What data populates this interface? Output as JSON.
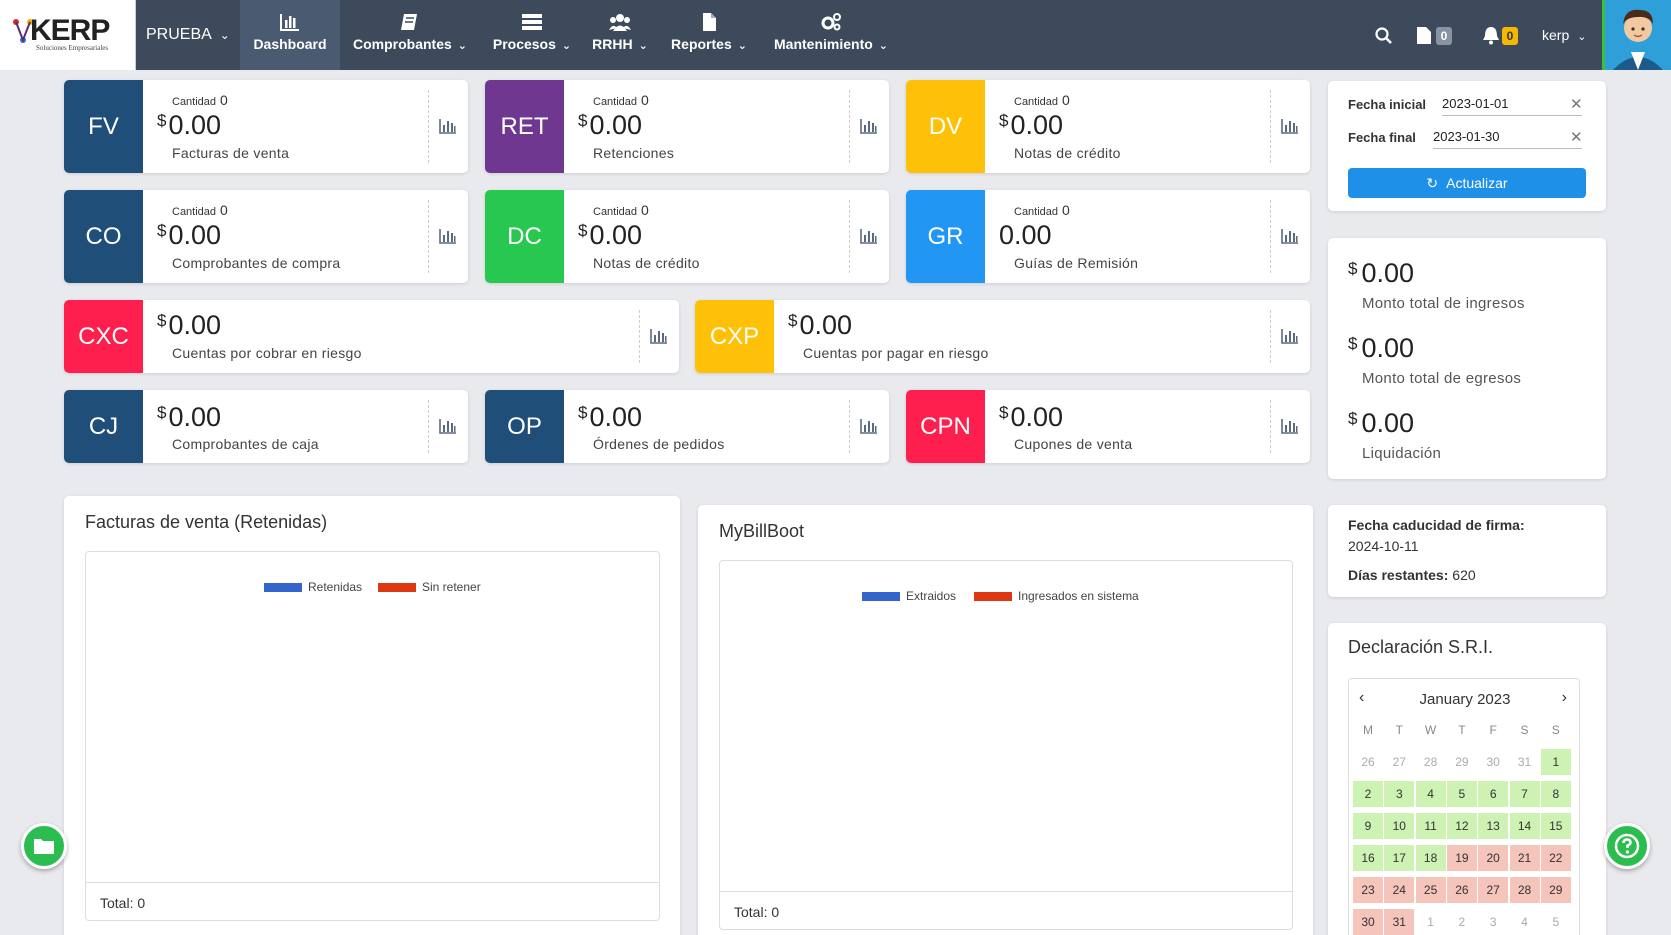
{
  "brand": {
    "logo_text": "KERP",
    "logo_sub": "Soluciones Empresariales",
    "primary": "#3c4a5c"
  },
  "navbar": {
    "company": "PRUEBA",
    "items": [
      {
        "label": "Dashboard",
        "icon": "bar-chart-icon",
        "active": true
      },
      {
        "label": "Comprobantes",
        "icon": "book-icon"
      },
      {
        "label": "Procesos",
        "icon": "server-icon"
      },
      {
        "label": "RRHH",
        "icon": "users-icon"
      },
      {
        "label": "Reportes",
        "icon": "file-icon"
      },
      {
        "label": "Mantenimiento",
        "icon": "cogs-icon"
      }
    ],
    "docs_count": "0",
    "notif_count": "0",
    "user": "kerp"
  },
  "cards": {
    "fv": {
      "tag": "FV",
      "color": "#1f4e79",
      "cantidad_label": "Cantidad",
      "cantidad": "0",
      "currency": "$",
      "amount": "0.00",
      "label": "Facturas de venta"
    },
    "ret": {
      "tag": "RET",
      "color": "#6f3790",
      "cantidad_label": "Cantidad",
      "cantidad": "0",
      "currency": "$",
      "amount": "0.00",
      "label": "Retenciones"
    },
    "dv": {
      "tag": "DV",
      "color": "#ffc107",
      "cantidad_label": "Cantidad",
      "cantidad": "0",
      "currency": "$",
      "amount": "0.00",
      "label": "Notas de crédito"
    },
    "co": {
      "tag": "CO",
      "color": "#1f4e79",
      "cantidad_label": "Cantidad",
      "cantidad": "0",
      "currency": "$",
      "amount": "0.00",
      "label": "Comprobantes de compra"
    },
    "dc": {
      "tag": "DC",
      "color": "#28c850",
      "cantidad_label": "Cantidad",
      "cantidad": "0",
      "currency": "$",
      "amount": "0.00",
      "label": "Notas de crédito"
    },
    "gr": {
      "tag": "GR",
      "color": "#2196f3",
      "cantidad_label": "Cantidad",
      "cantidad": "0",
      "amount": "0.00",
      "label": "Guías de Remisión"
    },
    "cxc": {
      "tag": "CXC",
      "color": "#ff1f4e",
      "currency": "$",
      "amount": "0.00",
      "label": "Cuentas por cobrar en riesgo"
    },
    "cxp": {
      "tag": "CXP",
      "color": "#ffc107",
      "currency": "$",
      "amount": "0.00",
      "label": "Cuentas por pagar en riesgo"
    },
    "cj": {
      "tag": "CJ",
      "color": "#1f4e79",
      "currency": "$",
      "amount": "0.00",
      "label": "Comprobantes de caja"
    },
    "op": {
      "tag": "OP",
      "color": "#1f4e79",
      "currency": "$",
      "amount": "0.00",
      "label": "Órdenes de pedidos"
    },
    "cpn": {
      "tag": "CPN",
      "color": "#ff1f4e",
      "currency": "$",
      "amount": "0.00",
      "label": "Cupones de venta"
    }
  },
  "filters": {
    "fecha_inicial_label": "Fecha inicial",
    "fecha_inicial": "2023-01-01",
    "fecha_final_label": "Fecha final",
    "fecha_final": "2023-01-30",
    "update_button": "Actualizar"
  },
  "summary": {
    "currency": "$",
    "ingresos": "0.00",
    "ingresos_label": "Monto total de ingresos",
    "egresos": "0.00",
    "egresos_label": "Monto total de egresos",
    "liquidacion": "0.00",
    "liquidacion_label": "Liquidación"
  },
  "firma": {
    "caducidad_label": "Fecha caducidad de firma:",
    "caducidad": "2024-10-11",
    "dias_label": "Días restantes:",
    "dias": "620"
  },
  "chart_data": [
    {
      "type": "bar",
      "title": "Facturas de venta (Retenidas)",
      "series": [
        {
          "name": "Retenidas",
          "color": "#3366cc",
          "values": []
        },
        {
          "name": "Sin retener",
          "color": "#dc3912",
          "values": []
        }
      ],
      "total_label": "Total: 0"
    },
    {
      "type": "bar",
      "title": "MyBillBoot",
      "series": [
        {
          "name": "Extraidos",
          "color": "#3366cc",
          "values": []
        },
        {
          "name": "Ingresados en sistema",
          "color": "#dc3912",
          "values": []
        }
      ],
      "total_label": "Total: 0"
    }
  ],
  "calendar": {
    "title": "Declaración S.R.I.",
    "month_label": "January 2023",
    "dow": [
      "M",
      "T",
      "W",
      "T",
      "F",
      "S",
      "S"
    ],
    "weeks": [
      [
        [
          "26",
          "muted"
        ],
        [
          "27",
          "muted"
        ],
        [
          "28",
          "muted"
        ],
        [
          "29",
          "muted"
        ],
        [
          "30",
          "muted"
        ],
        [
          "31",
          "muted"
        ],
        [
          "1",
          "g"
        ]
      ],
      [
        [
          "2",
          "g"
        ],
        [
          "3",
          "g"
        ],
        [
          "4",
          "g"
        ],
        [
          "5",
          "g"
        ],
        [
          "6",
          "g"
        ],
        [
          "7",
          "g"
        ],
        [
          "8",
          "g"
        ]
      ],
      [
        [
          "9",
          "g"
        ],
        [
          "10",
          "g"
        ],
        [
          "11",
          "g"
        ],
        [
          "12",
          "g"
        ],
        [
          "13",
          "g"
        ],
        [
          "14",
          "g"
        ],
        [
          "15",
          "g"
        ]
      ],
      [
        [
          "16",
          "g"
        ],
        [
          "17",
          "g"
        ],
        [
          "18",
          "g"
        ],
        [
          "19",
          "r"
        ],
        [
          "20",
          "r"
        ],
        [
          "21",
          "r"
        ],
        [
          "22",
          "r"
        ]
      ],
      [
        [
          "23",
          "r"
        ],
        [
          "24",
          "r"
        ],
        [
          "25",
          "r"
        ],
        [
          "26",
          "r"
        ],
        [
          "27",
          "r"
        ],
        [
          "28",
          "r"
        ],
        [
          "29",
          "r"
        ]
      ],
      [
        [
          "30",
          "r"
        ],
        [
          "31",
          "r"
        ],
        [
          "1",
          "muted"
        ],
        [
          "2",
          "muted"
        ],
        [
          "3",
          "muted"
        ],
        [
          "4",
          "muted"
        ],
        [
          "5",
          "muted"
        ]
      ]
    ]
  }
}
